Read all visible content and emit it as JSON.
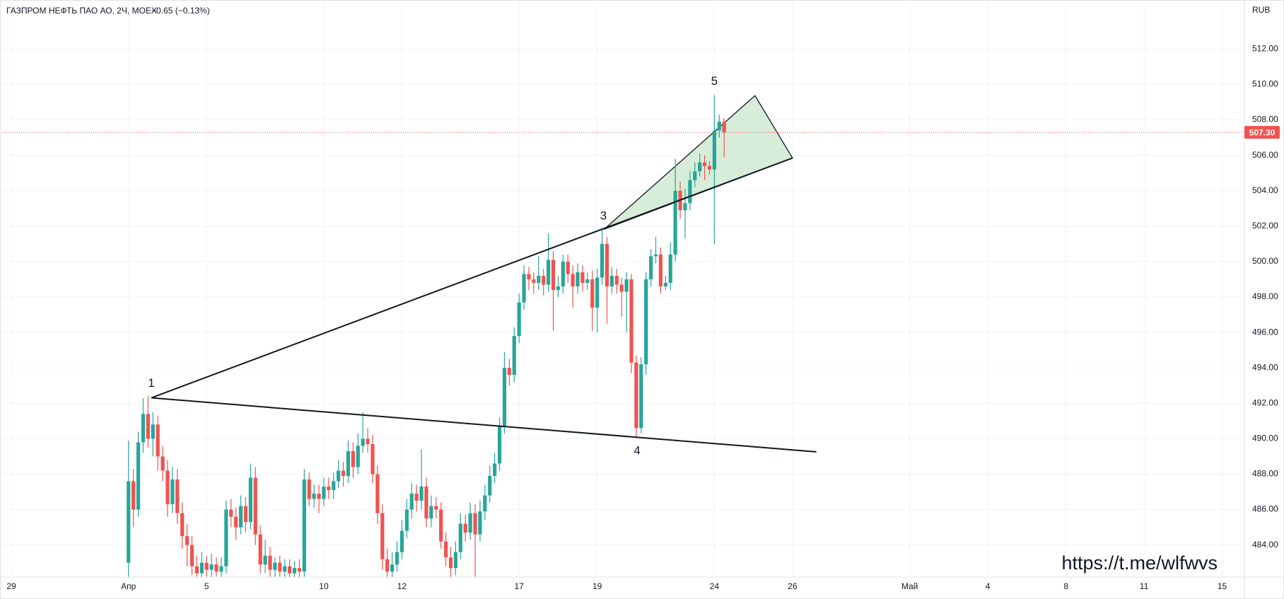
{
  "chart_data": {
    "type": "candlestick",
    "title": "ГАЗПРОМ НЕФТЬ ПАО АО, 2Ч, MOEX",
    "change": "−0.65 (−0.13%)",
    "currency": "RUB",
    "watermark": "https://t.me/wlfwvs",
    "up_color": "#26a69a",
    "down_color": "#ef5350",
    "grid": true,
    "xlim": [
      -0.29,
      31.57
    ],
    "ylim": [
      482.19,
      514.77
    ],
    "xticks": [
      {
        "value": 0,
        "label": "29"
      },
      {
        "value": 3,
        "label": "Апр"
      },
      {
        "value": 5,
        "label": "5"
      },
      {
        "value": 8,
        "label": "10"
      },
      {
        "value": 10,
        "label": "12"
      },
      {
        "value": 13,
        "label": "17"
      },
      {
        "value": 15,
        "label": "19"
      },
      {
        "value": 18,
        "label": "24"
      },
      {
        "value": 20,
        "label": "26"
      },
      {
        "value": 23,
        "label": "Май"
      },
      {
        "value": 25,
        "label": "4"
      },
      {
        "value": 27,
        "label": "8"
      },
      {
        "value": 29,
        "label": "11"
      },
      {
        "value": 31,
        "label": "15"
      }
    ],
    "yticks": [
      {
        "value": 484,
        "label": "484.00"
      },
      {
        "value": 486,
        "label": "486.00"
      },
      {
        "value": 488,
        "label": "488.00"
      },
      {
        "value": 490,
        "label": "490.00"
      },
      {
        "value": 492,
        "label": "492.00"
      },
      {
        "value": 494,
        "label": "494.00"
      },
      {
        "value": 496,
        "label": "496.00"
      },
      {
        "value": 498,
        "label": "498.00"
      },
      {
        "value": 500,
        "label": "500.00"
      },
      {
        "value": 502,
        "label": "502.00"
      },
      {
        "value": 504,
        "label": "504.00"
      },
      {
        "value": 506,
        "label": "506.00"
      },
      {
        "value": 508,
        "label": "508.00"
      },
      {
        "value": 510,
        "label": "510.00"
      },
      {
        "value": 512,
        "label": "512.00"
      }
    ],
    "last_price": {
      "value": 507.3,
      "label": "507.30"
    },
    "candles": [
      [
        3,
        483.0,
        489.9,
        482.2,
        487.6
      ],
      [
        3.125,
        487.6,
        488.3,
        485.0,
        486.0
      ],
      [
        3.25,
        486.0,
        490.4,
        485.6,
        489.8
      ],
      [
        3.375,
        489.8,
        492.3,
        489.2,
        491.4
      ],
      [
        3.5,
        491.4,
        492.4,
        489.5,
        490.0
      ],
      [
        3.625,
        490.0,
        491.5,
        489.0,
        490.8
      ],
      [
        3.75,
        490.8,
        491.3,
        488.2,
        489.0
      ],
      [
        3.875,
        489.0,
        489.6,
        487.6,
        488.2
      ],
      [
        4,
        488.2,
        488.8,
        485.6,
        486.3
      ],
      [
        4.125,
        486.3,
        488.4,
        485.8,
        487.7
      ],
      [
        4.25,
        487.7,
        488.3,
        485.2,
        485.8
      ],
      [
        4.375,
        485.8,
        486.4,
        483.8,
        484.5
      ],
      [
        4.5,
        484.5,
        485.2,
        482.8,
        484.0
      ],
      [
        4.625,
        484.0,
        484.5,
        482.3,
        482.8
      ],
      [
        4.75,
        482.8,
        483.4,
        482.2,
        482.4
      ],
      [
        4.875,
        482.4,
        483.6,
        482.2,
        483.0
      ],
      [
        5,
        483.0,
        483.4,
        482.2,
        482.6
      ],
      [
        5.125,
        482.6,
        483.5,
        482.2,
        482.9
      ],
      [
        5.25,
        482.9,
        483.3,
        482.2,
        482.5
      ],
      [
        5.375,
        482.5,
        483.3,
        482.2,
        482.8
      ],
      [
        5.5,
        482.8,
        486.5,
        482.4,
        486.0
      ],
      [
        5.625,
        486.0,
        486.6,
        485.0,
        485.6
      ],
      [
        5.75,
        485.6,
        486.1,
        484.3,
        485.0
      ],
      [
        5.875,
        485.0,
        486.8,
        484.6,
        486.2
      ],
      [
        6,
        486.2,
        486.7,
        484.7,
        485.3
      ],
      [
        6.125,
        485.3,
        488.6,
        484.9,
        487.8
      ],
      [
        6.25,
        487.8,
        488.4,
        484.0,
        484.6
      ],
      [
        6.375,
        484.6,
        485.1,
        482.4,
        482.9
      ],
      [
        6.5,
        482.9,
        484.3,
        482.4,
        483.4
      ],
      [
        6.625,
        483.4,
        483.9,
        482.2,
        482.6
      ],
      [
        6.75,
        482.6,
        483.3,
        482.2,
        483.0
      ],
      [
        6.875,
        483.0,
        483.4,
        482.2,
        482.5
      ],
      [
        7,
        482.5,
        483.2,
        482.2,
        482.8
      ],
      [
        7.125,
        482.8,
        483.2,
        482.2,
        482.4
      ],
      [
        7.25,
        482.4,
        483.1,
        482.2,
        482.7
      ],
      [
        7.375,
        482.7,
        483.2,
        482.2,
        482.5
      ],
      [
        7.5,
        482.5,
        488.3,
        482.2,
        487.7
      ],
      [
        7.625,
        487.7,
        488.1,
        486.2,
        486.6
      ],
      [
        7.75,
        486.6,
        487.4,
        486.1,
        486.9
      ],
      [
        7.875,
        486.9,
        487.4,
        485.8,
        486.6
      ],
      [
        8,
        486.6,
        487.8,
        486.2,
        487.3
      ],
      [
        8.125,
        487.3,
        487.8,
        486.6,
        487.1
      ],
      [
        8.25,
        487.1,
        488.1,
        486.6,
        487.6
      ],
      [
        8.375,
        487.6,
        488.8,
        487.2,
        488.2
      ],
      [
        8.5,
        488.2,
        488.7,
        487.3,
        487.9
      ],
      [
        8.625,
        487.9,
        489.9,
        487.5,
        489.3
      ],
      [
        8.75,
        489.3,
        489.8,
        487.8,
        488.4
      ],
      [
        8.875,
        488.4,
        490.3,
        488.0,
        489.6
      ],
      [
        9,
        489.6,
        491.5,
        489.2,
        490.0
      ],
      [
        9.125,
        490.0,
        490.6,
        489.2,
        489.7
      ],
      [
        9.25,
        489.7,
        490.2,
        487.5,
        488.0
      ],
      [
        9.375,
        488.0,
        488.5,
        485.2,
        485.8
      ],
      [
        9.5,
        485.8,
        486.3,
        482.6,
        483.2
      ],
      [
        9.625,
        483.2,
        483.8,
        482.2,
        482.5
      ],
      [
        9.75,
        482.5,
        483.6,
        482.2,
        482.9
      ],
      [
        9.875,
        482.9,
        484.2,
        482.5,
        483.6
      ],
      [
        10,
        483.6,
        485.4,
        483.2,
        484.8
      ],
      [
        10.125,
        484.8,
        486.6,
        484.4,
        486.0
      ],
      [
        10.25,
        486.0,
        487.5,
        485.5,
        486.9
      ],
      [
        10.375,
        486.9,
        487.4,
        485.9,
        486.5
      ],
      [
        10.5,
        486.5,
        489.4,
        486.0,
        487.3
      ],
      [
        10.625,
        487.3,
        487.8,
        485.0,
        485.5
      ],
      [
        10.75,
        485.5,
        486.8,
        485.0,
        486.2
      ],
      [
        10.875,
        486.2,
        486.7,
        485.5,
        486.0
      ],
      [
        11,
        486.0,
        486.4,
        483.8,
        484.2
      ],
      [
        11.125,
        484.2,
        484.7,
        482.8,
        483.3
      ],
      [
        11.25,
        483.3,
        483.9,
        482.2,
        482.7
      ],
      [
        11.375,
        482.7,
        484.2,
        482.3,
        483.6
      ],
      [
        11.5,
        483.6,
        485.8,
        483.2,
        485.2
      ],
      [
        11.625,
        485.2,
        485.7,
        484.2,
        484.7
      ],
      [
        11.75,
        484.7,
        486.4,
        484.3,
        485.8
      ],
      [
        11.875,
        485.8,
        486.3,
        482.2,
        484.6
      ],
      [
        12,
        484.6,
        486.5,
        484.2,
        485.9
      ],
      [
        12.125,
        485.9,
        487.4,
        485.4,
        486.8
      ],
      [
        12.25,
        486.8,
        488.5,
        486.4,
        487.9
      ],
      [
        12.375,
        487.9,
        489.2,
        487.5,
        488.6
      ],
      [
        12.5,
        488.6,
        491.2,
        488.2,
        490.7
      ],
      [
        12.625,
        490.7,
        494.9,
        490.3,
        494.0
      ],
      [
        12.75,
        494.0,
        494.5,
        493.0,
        493.6
      ],
      [
        12.875,
        493.6,
        496.3,
        493.2,
        495.8
      ],
      [
        13,
        495.8,
        498.2,
        495.4,
        497.7
      ],
      [
        13.125,
        497.7,
        499.8,
        497.3,
        499.3
      ],
      [
        13.25,
        499.3,
        499.7,
        498.4,
        499.0
      ],
      [
        13.375,
        499.0,
        499.4,
        498.2,
        498.8
      ],
      [
        13.5,
        498.8,
        500.3,
        498.4,
        499.2
      ],
      [
        13.625,
        499.2,
        499.6,
        498.1,
        498.7
      ],
      [
        13.75,
        498.7,
        501.6,
        498.3,
        500.1
      ],
      [
        13.875,
        500.1,
        500.6,
        496.1,
        498.4
      ],
      [
        14,
        498.4,
        499.2,
        498.0,
        498.6
      ],
      [
        14.125,
        498.6,
        500.4,
        498.2,
        500.0
      ],
      [
        14.25,
        500.0,
        500.4,
        498.8,
        499.3
      ],
      [
        14.375,
        499.3,
        499.8,
        497.4,
        498.6
      ],
      [
        14.5,
        498.6,
        499.9,
        498.2,
        499.4
      ],
      [
        14.625,
        499.4,
        499.8,
        498.3,
        498.8
      ],
      [
        14.75,
        498.8,
        499.4,
        498.4,
        499.0
      ],
      [
        14.875,
        499.0,
        499.5,
        496.1,
        497.4
      ],
      [
        15,
        497.4,
        499.6,
        496.0,
        499.1
      ],
      [
        15.125,
        499.1,
        501.9,
        498.7,
        501.0
      ],
      [
        15.25,
        501.0,
        501.4,
        496.5,
        498.6
      ],
      [
        15.375,
        498.6,
        499.7,
        498.2,
        499.2
      ],
      [
        15.5,
        499.2,
        499.6,
        498.2,
        498.7
      ],
      [
        15.625,
        498.7,
        499.1,
        496.9,
        498.3
      ],
      [
        15.75,
        498.3,
        499.4,
        496.0,
        499.0
      ],
      [
        15.875,
        499.0,
        499.3,
        493.7,
        494.3
      ],
      [
        16,
        494.3,
        494.7,
        490.1,
        490.6
      ],
      [
        16.125,
        490.6,
        494.6,
        490.3,
        494.2
      ],
      [
        16.25,
        494.2,
        499.4,
        493.6,
        499.0
      ],
      [
        16.375,
        499.0,
        500.7,
        498.6,
        500.3
      ],
      [
        16.5,
        500.3,
        501.4,
        499.9,
        500.4
      ],
      [
        16.625,
        500.4,
        500.8,
        498.2,
        498.6
      ],
      [
        16.75,
        498.6,
        499.2,
        498.4,
        498.8
      ],
      [
        16.875,
        498.8,
        501.1,
        498.4,
        500.4
      ],
      [
        17,
        500.4,
        505.8,
        500.0,
        504.0
      ],
      [
        17.125,
        504.0,
        504.5,
        502.4,
        502.9
      ],
      [
        17.25,
        502.9,
        504.1,
        501.3,
        503.3
      ],
      [
        17.375,
        503.3,
        505.1,
        502.9,
        504.6
      ],
      [
        17.5,
        504.6,
        505.6,
        504.2,
        505.1
      ],
      [
        17.625,
        505.1,
        506.1,
        504.8,
        505.6
      ],
      [
        17.75,
        505.6,
        506.0,
        504.6,
        505.4
      ],
      [
        17.875,
        505.4,
        505.7,
        504.9,
        505.2
      ],
      [
        18,
        505.2,
        509.4,
        501.0,
        507.4
      ],
      [
        18.125,
        507.4,
        508.3,
        507.0,
        507.9
      ],
      [
        18.25,
        507.9,
        508.1,
        505.9,
        507.3
      ]
    ],
    "trendlines": [
      {
        "points": [
          [
            3.585,
            492.31
          ],
          [
            20.0,
            505.85
          ]
        ]
      },
      {
        "points": [
          [
            3.585,
            492.31
          ],
          [
            20.61,
            489.26
          ]
        ]
      }
    ],
    "triangle": {
      "color": "#c8e6c9",
      "points": [
        [
          15.18,
          501.83
        ],
        [
          19.04,
          509.37
        ],
        [
          20.0,
          505.85
        ]
      ]
    },
    "annotations": [
      {
        "text": "1",
        "x": 3.585,
        "y": 493.1
      },
      {
        "text": "3",
        "x": 15.16,
        "y": 502.55
      },
      {
        "text": "5",
        "x": 18.0,
        "y": 510.15
      },
      {
        "text": "4",
        "x": 16.02,
        "y": 489.3
      }
    ]
  }
}
